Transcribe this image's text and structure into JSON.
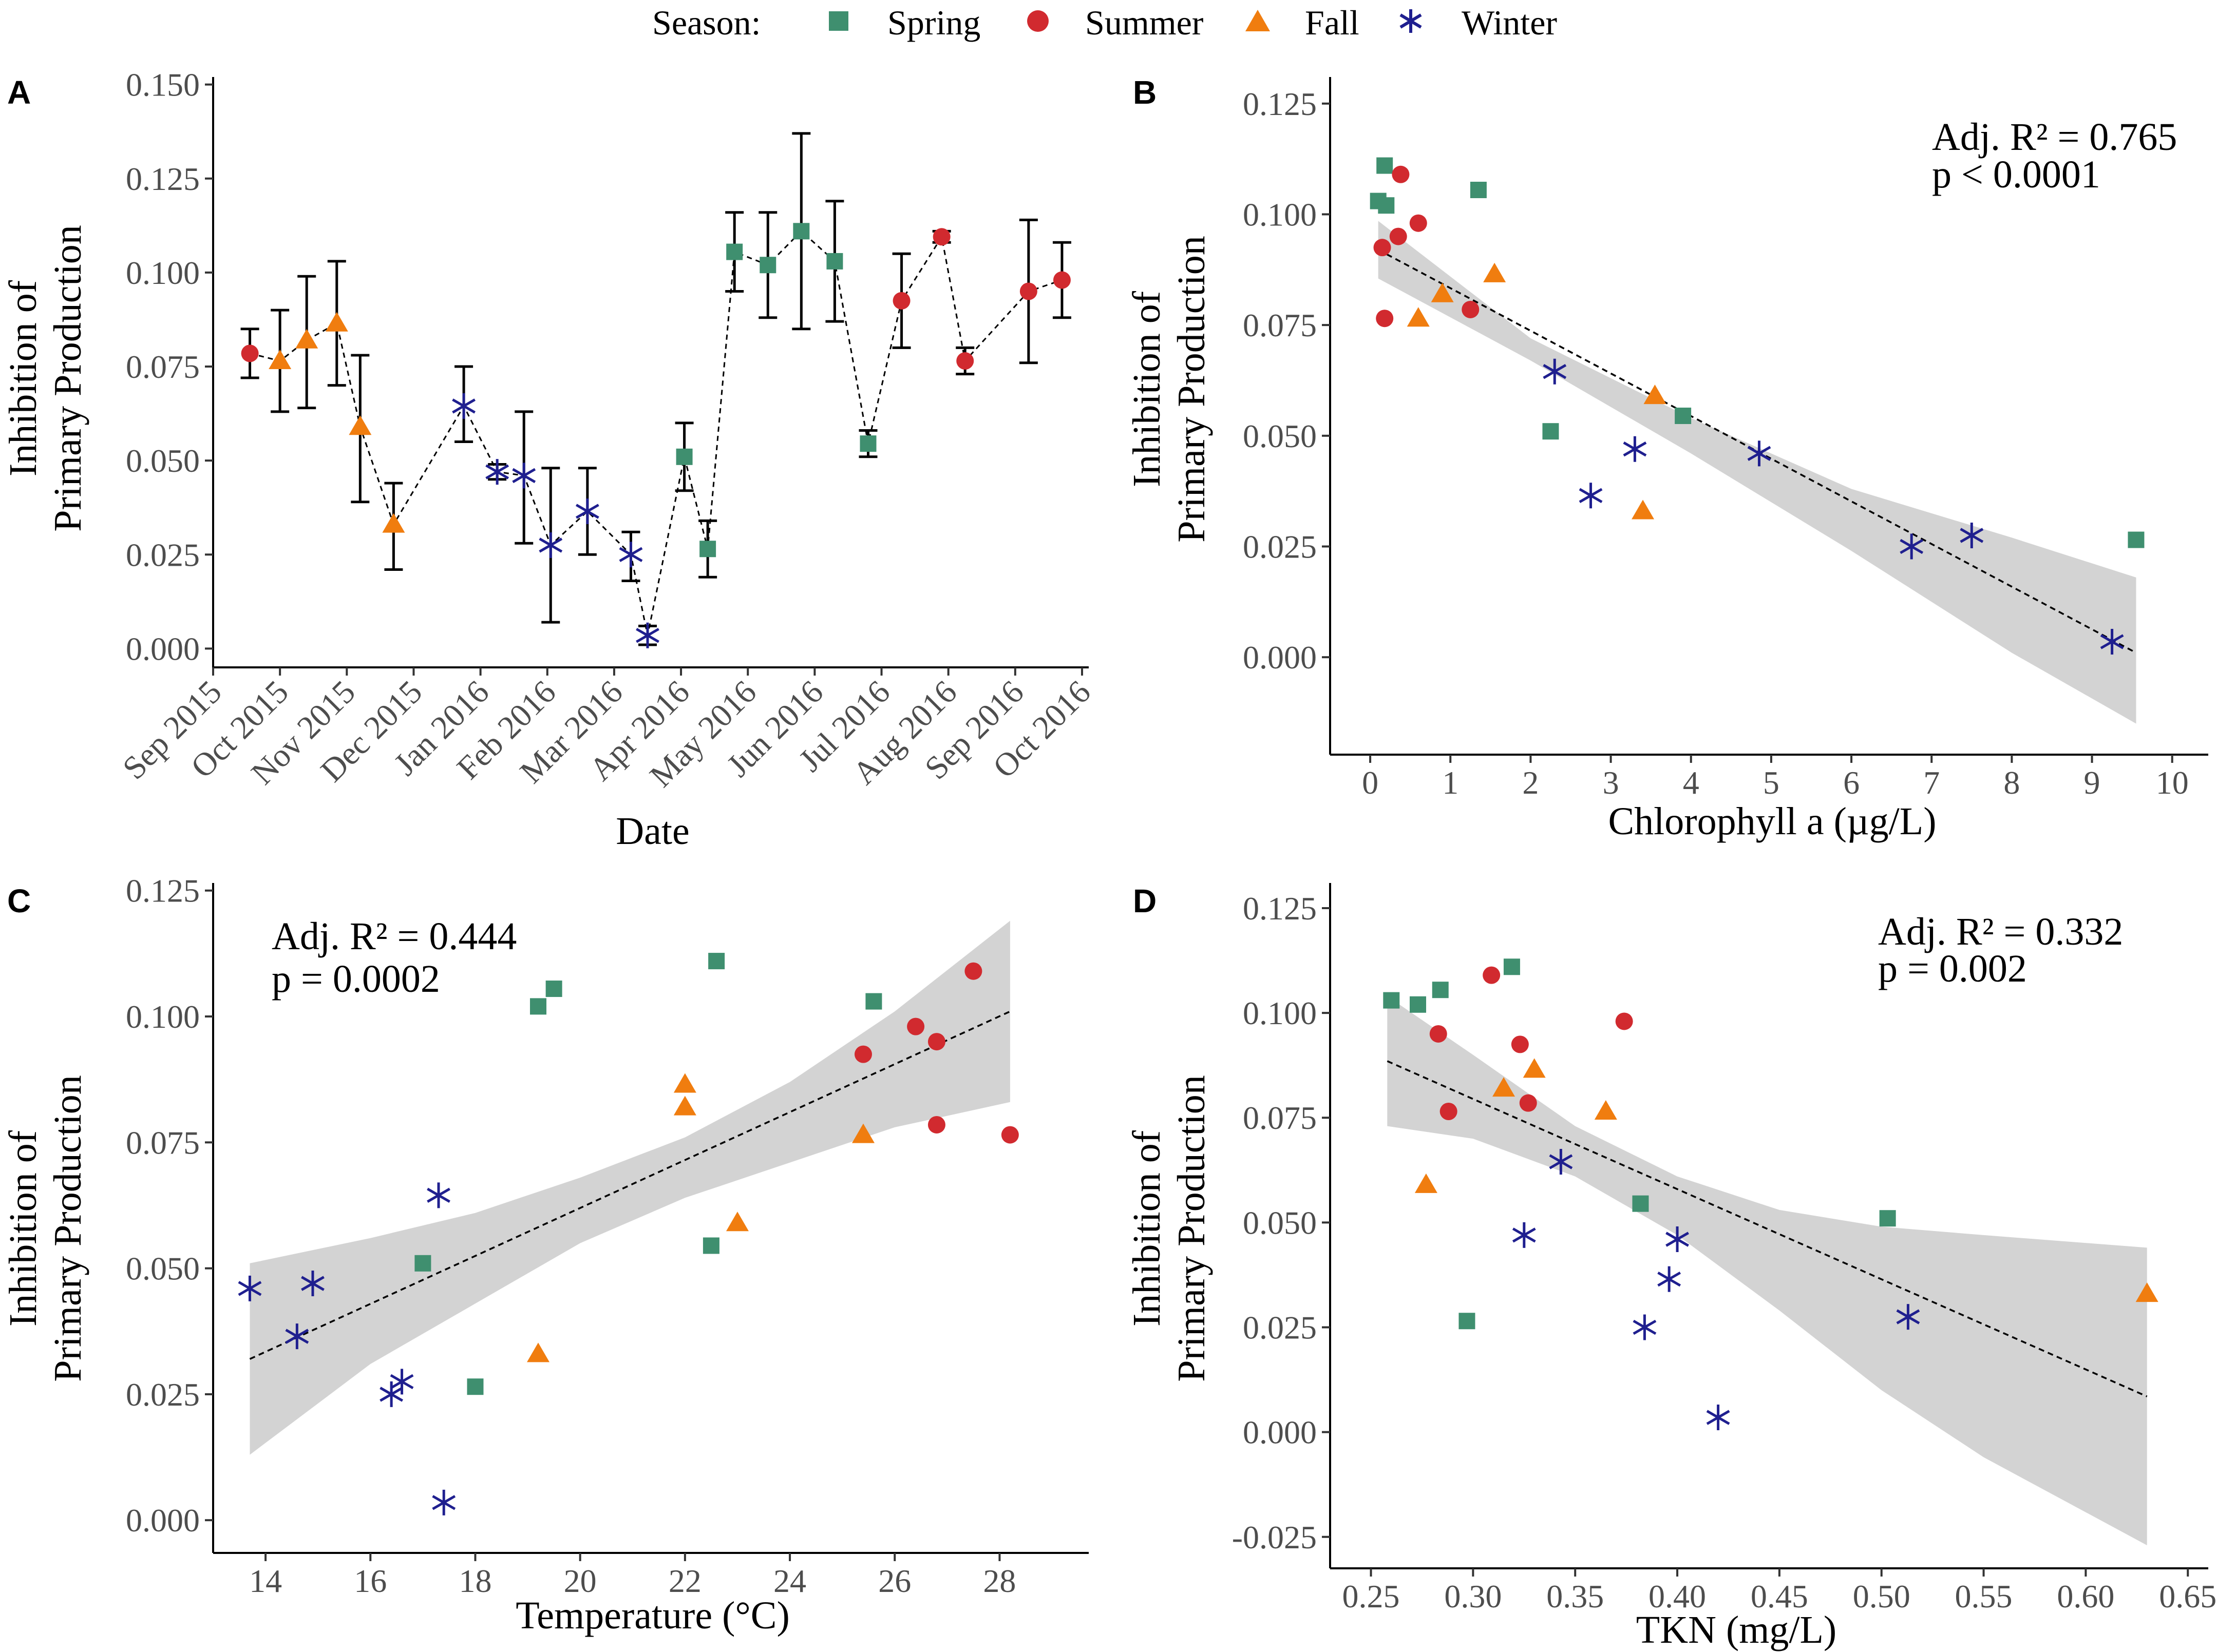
{
  "legend": {
    "title": "Season:",
    "items": [
      {
        "name": "Spring",
        "color": "#3f8f6f",
        "shape": "square"
      },
      {
        "name": "Summer",
        "color": "#d12a2f",
        "shape": "circle"
      },
      {
        "name": "Fall",
        "color": "#f07d0f",
        "shape": "triangle"
      },
      {
        "name": "Winter",
        "color": "#1f1f8f",
        "shape": "asterisk"
      }
    ]
  },
  "chart_data": [
    {
      "panel": "A",
      "type": "scatter",
      "xlabel": "Date",
      "ylabel": [
        "Inhibition of",
        "Primary Production"
      ],
      "xlim": [
        0,
        13.1
      ],
      "ylim": [
        -0.005,
        0.152
      ],
      "yticks": [
        0.0,
        0.025,
        0.05,
        0.075,
        0.1,
        0.125,
        0.15
      ],
      "ytick_labels": [
        "0.000",
        "0.025",
        "0.050",
        "0.075",
        "0.100",
        "0.125",
        "0.150"
      ],
      "xticks": [
        0,
        1,
        2,
        3,
        4,
        5,
        6,
        7,
        8,
        9,
        10,
        11,
        12,
        13
      ],
      "xtick_labels": [
        "Sep 2015",
        "Oct 2015",
        "Nov 2015",
        "Dec 2015",
        "Jan 2016",
        "Feb 2016",
        "Mar 2016",
        "Apr 2016",
        "May 2016",
        "Jun 2016",
        "Jul 2016",
        "Aug 2016",
        "Sep 2016",
        "Oct 2016"
      ],
      "connect_line": true,
      "points": [
        {
          "x": 0.55,
          "y": 0.0785,
          "lo": 0.072,
          "hi": 0.085,
          "season": "Summer"
        },
        {
          "x": 1.0,
          "y": 0.0765,
          "lo": 0.063,
          "hi": 0.09,
          "season": "Fall"
        },
        {
          "x": 1.4,
          "y": 0.082,
          "lo": 0.064,
          "hi": 0.099,
          "season": "Fall"
        },
        {
          "x": 1.85,
          "y": 0.0865,
          "lo": 0.07,
          "hi": 0.103,
          "season": "Fall"
        },
        {
          "x": 2.2,
          "y": 0.059,
          "lo": 0.039,
          "hi": 0.078,
          "season": "Fall"
        },
        {
          "x": 2.7,
          "y": 0.033,
          "lo": 0.021,
          "hi": 0.044,
          "season": "Fall"
        },
        {
          "x": 3.75,
          "y": 0.0645,
          "lo": 0.055,
          "hi": 0.075,
          "season": "Winter"
        },
        {
          "x": 4.25,
          "y": 0.047,
          "lo": 0.045,
          "hi": 0.049,
          "season": "Winter"
        },
        {
          "x": 4.65,
          "y": 0.046,
          "lo": 0.028,
          "hi": 0.063,
          "season": "Winter"
        },
        {
          "x": 5.05,
          "y": 0.0275,
          "lo": 0.007,
          "hi": 0.048,
          "season": "Winter"
        },
        {
          "x": 5.6,
          "y": 0.0365,
          "lo": 0.025,
          "hi": 0.048,
          "season": "Winter"
        },
        {
          "x": 6.25,
          "y": 0.025,
          "lo": 0.018,
          "hi": 0.031,
          "season": "Winter"
        },
        {
          "x": 6.5,
          "y": 0.0035,
          "lo": 0.001,
          "hi": 0.006,
          "season": "Winter"
        },
        {
          "x": 7.05,
          "y": 0.051,
          "lo": 0.042,
          "hi": 0.06,
          "season": "Spring"
        },
        {
          "x": 7.4,
          "y": 0.0265,
          "lo": 0.019,
          "hi": 0.034,
          "season": "Spring"
        },
        {
          "x": 7.8,
          "y": 0.1055,
          "lo": 0.095,
          "hi": 0.116,
          "season": "Spring"
        },
        {
          "x": 8.3,
          "y": 0.102,
          "lo": 0.088,
          "hi": 0.116,
          "season": "Spring"
        },
        {
          "x": 8.8,
          "y": 0.111,
          "lo": 0.085,
          "hi": 0.137,
          "season": "Spring"
        },
        {
          "x": 9.3,
          "y": 0.103,
          "lo": 0.087,
          "hi": 0.119,
          "season": "Spring"
        },
        {
          "x": 9.8,
          "y": 0.0545,
          "lo": 0.051,
          "hi": 0.058,
          "season": "Spring"
        },
        {
          "x": 10.3,
          "y": 0.0925,
          "lo": 0.08,
          "hi": 0.105,
          "season": "Summer"
        },
        {
          "x": 10.9,
          "y": 0.1095,
          "lo": 0.108,
          "hi": 0.111,
          "season": "Summer"
        },
        {
          "x": 11.25,
          "y": 0.0765,
          "lo": 0.073,
          "hi": 0.08,
          "season": "Summer"
        },
        {
          "x": 12.2,
          "y": 0.095,
          "lo": 0.076,
          "hi": 0.114,
          "season": "Summer"
        },
        {
          "x": 12.7,
          "y": 0.098,
          "lo": 0.088,
          "hi": 0.108,
          "season": "Summer"
        }
      ]
    },
    {
      "panel": "B",
      "type": "scatter",
      "xlabel": "Chlorophyll a (µg/L)",
      "ylabel": [
        "Inhibition of",
        "Primary Production"
      ],
      "xlim": [
        -0.5,
        10.45
      ],
      "ylim": [
        -0.022,
        0.131
      ],
      "xticks": [
        0,
        1,
        2,
        3,
        4,
        5,
        6,
        7,
        8,
        9,
        10
      ],
      "xtick_labels": [
        "0",
        "1",
        "2",
        "3",
        "4",
        "5",
        "6",
        "7",
        "8",
        "9",
        "10"
      ],
      "yticks": [
        0.0,
        0.025,
        0.05,
        0.075,
        0.1,
        0.125
      ],
      "ytick_labels": [
        "0.000",
        "0.025",
        "0.050",
        "0.075",
        "0.100",
        "0.125"
      ],
      "stats": {
        "r2": "Adj. R² = 0.765",
        "p": "p < 0.0001"
      },
      "fit": {
        "x0": 0.1,
        "y0": 0.092,
        "x1": 9.55,
        "y1": 0.001
      },
      "band": [
        [
          0.1,
          0.0985,
          0.0855
        ],
        [
          2.0,
          0.072,
          0.067
        ],
        [
          4.0,
          0.054,
          0.046
        ],
        [
          6.0,
          0.038,
          0.024
        ],
        [
          8.0,
          0.027,
          0.001
        ],
        [
          9.55,
          0.018,
          -0.015
        ]
      ],
      "points": [
        {
          "x": 0.1,
          "y": 0.103,
          "season": "Spring"
        },
        {
          "x": 0.2,
          "y": 0.102,
          "season": "Spring"
        },
        {
          "x": 0.18,
          "y": 0.111,
          "season": "Spring"
        },
        {
          "x": 1.35,
          "y": 0.1055,
          "season": "Spring"
        },
        {
          "x": 2.25,
          "y": 0.051,
          "season": "Spring"
        },
        {
          "x": 3.9,
          "y": 0.0545,
          "season": "Spring"
        },
        {
          "x": 9.55,
          "y": 0.0265,
          "season": "Spring"
        },
        {
          "x": 0.38,
          "y": 0.109,
          "season": "Summer"
        },
        {
          "x": 0.35,
          "y": 0.095,
          "season": "Summer"
        },
        {
          "x": 0.15,
          "y": 0.0925,
          "season": "Summer"
        },
        {
          "x": 0.6,
          "y": 0.098,
          "season": "Summer"
        },
        {
          "x": 0.18,
          "y": 0.0765,
          "season": "Summer"
        },
        {
          "x": 1.25,
          "y": 0.0785,
          "season": "Summer"
        },
        {
          "x": 0.6,
          "y": 0.0765,
          "season": "Fall"
        },
        {
          "x": 0.9,
          "y": 0.082,
          "season": "Fall"
        },
        {
          "x": 1.55,
          "y": 0.0865,
          "season": "Fall"
        },
        {
          "x": 3.55,
          "y": 0.059,
          "season": "Fall"
        },
        {
          "x": 3.4,
          "y": 0.033,
          "season": "Fall"
        },
        {
          "x": 2.3,
          "y": 0.0645,
          "season": "Winter"
        },
        {
          "x": 3.3,
          "y": 0.047,
          "season": "Winter"
        },
        {
          "x": 4.85,
          "y": 0.046,
          "season": "Winter"
        },
        {
          "x": 2.75,
          "y": 0.0365,
          "season": "Winter"
        },
        {
          "x": 6.75,
          "y": 0.025,
          "season": "Winter"
        },
        {
          "x": 7.5,
          "y": 0.0275,
          "season": "Winter"
        },
        {
          "x": 9.25,
          "y": 0.0035,
          "season": "Winter"
        }
      ]
    },
    {
      "panel": "C",
      "type": "scatter",
      "xlabel": "Temperature (°C)",
      "ylabel": [
        "Inhibition of",
        "Primary Production"
      ],
      "xlim": [
        13.0,
        29.7
      ],
      "ylim": [
        -0.0065,
        0.1265
      ],
      "xticks": [
        14,
        16,
        18,
        20,
        22,
        24,
        26,
        28
      ],
      "xtick_labels": [
        "14",
        "16",
        "18",
        "20",
        "22",
        "24",
        "26",
        "28"
      ],
      "yticks": [
        0.0,
        0.025,
        0.05,
        0.075,
        0.1,
        0.125
      ],
      "ytick_labels": [
        "0.000",
        "0.025",
        "0.050",
        "0.075",
        "0.100",
        "0.125"
      ],
      "stats": {
        "r2": "Adj. R² = 0.444",
        "p": "p = 0.0002"
      },
      "fit": {
        "x0": 13.7,
        "y0": 0.032,
        "x1": 28.2,
        "y1": 0.101
      },
      "band": [
        [
          13.7,
          0.051,
          0.013
        ],
        [
          16.0,
          0.056,
          0.031
        ],
        [
          18.0,
          0.061,
          0.043
        ],
        [
          20.0,
          0.068,
          0.055
        ],
        [
          22.0,
          0.076,
          0.064
        ],
        [
          24.0,
          0.087,
          0.071
        ],
        [
          26.0,
          0.101,
          0.078
        ],
        [
          28.2,
          0.119,
          0.083
        ]
      ],
      "points": [
        {
          "x": 19.2,
          "y": 0.102,
          "season": "Spring"
        },
        {
          "x": 19.5,
          "y": 0.1055,
          "season": "Spring"
        },
        {
          "x": 22.6,
          "y": 0.111,
          "season": "Spring"
        },
        {
          "x": 25.6,
          "y": 0.103,
          "season": "Spring"
        },
        {
          "x": 17.0,
          "y": 0.051,
          "season": "Spring"
        },
        {
          "x": 22.5,
          "y": 0.0545,
          "season": "Spring"
        },
        {
          "x": 18.0,
          "y": 0.0265,
          "season": "Spring"
        },
        {
          "x": 27.5,
          "y": 0.109,
          "season": "Summer"
        },
        {
          "x": 26.4,
          "y": 0.098,
          "season": "Summer"
        },
        {
          "x": 25.4,
          "y": 0.0925,
          "season": "Summer"
        },
        {
          "x": 26.8,
          "y": 0.095,
          "season": "Summer"
        },
        {
          "x": 26.8,
          "y": 0.0785,
          "season": "Summer"
        },
        {
          "x": 28.2,
          "y": 0.0765,
          "season": "Summer"
        },
        {
          "x": 22.0,
          "y": 0.0865,
          "season": "Fall"
        },
        {
          "x": 22.0,
          "y": 0.082,
          "season": "Fall"
        },
        {
          "x": 25.4,
          "y": 0.0765,
          "season": "Fall"
        },
        {
          "x": 23.0,
          "y": 0.059,
          "season": "Fall"
        },
        {
          "x": 19.2,
          "y": 0.033,
          "season": "Fall"
        },
        {
          "x": 17.3,
          "y": 0.0645,
          "season": "Winter"
        },
        {
          "x": 13.7,
          "y": 0.046,
          "season": "Winter"
        },
        {
          "x": 14.9,
          "y": 0.047,
          "season": "Winter"
        },
        {
          "x": 14.6,
          "y": 0.0365,
          "season": "Winter"
        },
        {
          "x": 16.6,
          "y": 0.0275,
          "season": "Winter"
        },
        {
          "x": 16.4,
          "y": 0.025,
          "season": "Winter"
        },
        {
          "x": 17.4,
          "y": 0.0035,
          "season": "Winter"
        }
      ]
    },
    {
      "panel": "D",
      "type": "scatter",
      "xlabel": "TKN (mg/L)",
      "ylabel": [
        "Inhibition of",
        "Primary Production"
      ],
      "xlim": [
        0.23,
        0.66
      ],
      "ylim": [
        -0.0325,
        0.131
      ],
      "xticks": [
        0.25,
        0.3,
        0.35,
        0.4,
        0.45,
        0.5,
        0.55,
        0.6,
        0.65
      ],
      "xtick_labels": [
        "0.25",
        "0.30",
        "0.35",
        "0.40",
        "0.45",
        "0.50",
        "0.55",
        "0.60",
        "0.65"
      ],
      "yticks": [
        -0.025,
        0.0,
        0.025,
        0.05,
        0.075,
        0.1,
        0.125
      ],
      "ytick_labels": [
        "-0.025",
        "0.000",
        "0.025",
        "0.050",
        "0.075",
        "0.100",
        "0.125"
      ],
      "stats": {
        "r2": "Adj. R² = 0.332",
        "p": "p = 0.002"
      },
      "fit": {
        "x0": 0.258,
        "y0": 0.0885,
        "x1": 0.63,
        "y1": 0.0085
      },
      "band": [
        [
          0.258,
          0.104,
          0.073
        ],
        [
          0.3,
          0.09,
          0.07
        ],
        [
          0.35,
          0.073,
          0.061
        ],
        [
          0.4,
          0.061,
          0.047
        ],
        [
          0.45,
          0.053,
          0.029
        ],
        [
          0.5,
          0.049,
          0.01
        ],
        [
          0.55,
          0.047,
          -0.006
        ],
        [
          0.63,
          0.044,
          -0.027
        ]
      ],
      "points": [
        {
          "x": 0.26,
          "y": 0.103,
          "season": "Spring"
        },
        {
          "x": 0.273,
          "y": 0.102,
          "season": "Spring"
        },
        {
          "x": 0.284,
          "y": 0.1055,
          "season": "Spring"
        },
        {
          "x": 0.319,
          "y": 0.111,
          "season": "Spring"
        },
        {
          "x": 0.382,
          "y": 0.0545,
          "season": "Spring"
        },
        {
          "x": 0.503,
          "y": 0.051,
          "season": "Spring"
        },
        {
          "x": 0.297,
          "y": 0.0265,
          "season": "Spring"
        },
        {
          "x": 0.309,
          "y": 0.109,
          "season": "Summer"
        },
        {
          "x": 0.374,
          "y": 0.098,
          "season": "Summer"
        },
        {
          "x": 0.283,
          "y": 0.095,
          "season": "Summer"
        },
        {
          "x": 0.323,
          "y": 0.0925,
          "season": "Summer"
        },
        {
          "x": 0.327,
          "y": 0.0785,
          "season": "Summer"
        },
        {
          "x": 0.288,
          "y": 0.0765,
          "season": "Summer"
        },
        {
          "x": 0.33,
          "y": 0.0865,
          "season": "Fall"
        },
        {
          "x": 0.315,
          "y": 0.082,
          "season": "Fall"
        },
        {
          "x": 0.365,
          "y": 0.0765,
          "season": "Fall"
        },
        {
          "x": 0.277,
          "y": 0.059,
          "season": "Fall"
        },
        {
          "x": 0.63,
          "y": 0.033,
          "season": "Fall"
        },
        {
          "x": 0.343,
          "y": 0.0645,
          "season": "Winter"
        },
        {
          "x": 0.325,
          "y": 0.047,
          "season": "Winter"
        },
        {
          "x": 0.4,
          "y": 0.046,
          "season": "Winter"
        },
        {
          "x": 0.396,
          "y": 0.0365,
          "season": "Winter"
        },
        {
          "x": 0.384,
          "y": 0.025,
          "season": "Winter"
        },
        {
          "x": 0.513,
          "y": 0.0275,
          "season": "Winter"
        },
        {
          "x": 0.42,
          "y": 0.0035,
          "season": "Winter"
        }
      ]
    }
  ]
}
